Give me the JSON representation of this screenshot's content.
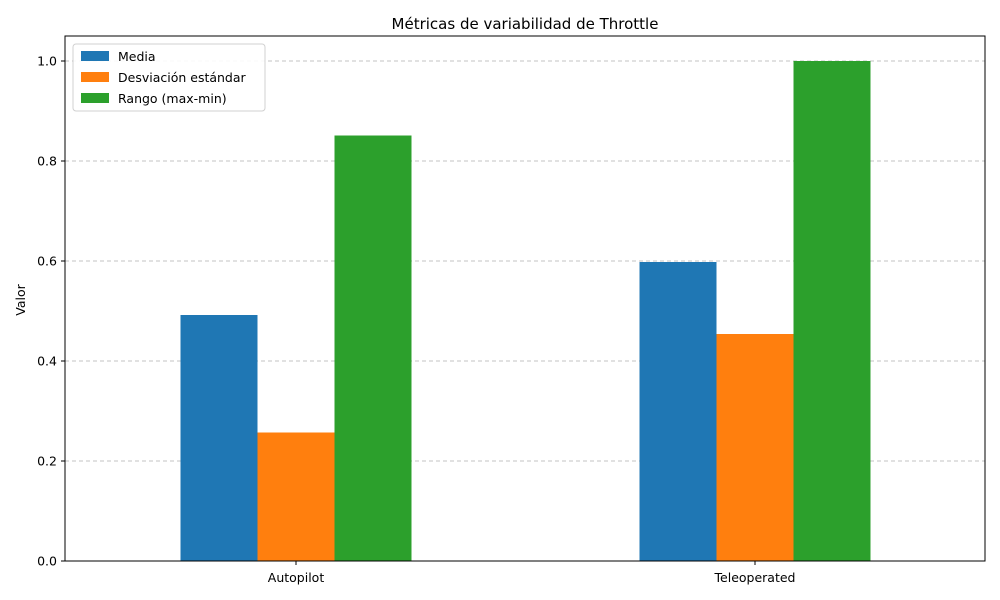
{
  "chart_data": {
    "type": "bar",
    "title": "Métricas de variabilidad de Throttle",
    "xlabel": "",
    "ylabel": "Valor",
    "categories": [
      "Autopilot",
      "Teleoperated"
    ],
    "series": [
      {
        "name": "Media",
        "color": "#1f77b4",
        "values": [
          0.492,
          0.598
        ]
      },
      {
        "name": "Desviación estándar",
        "color": "#ff7f0e",
        "values": [
          0.257,
          0.454
        ]
      },
      {
        "name": "Rango (max-min)",
        "color": "#2ca02c",
        "values": [
          0.851,
          1.0
        ]
      }
    ],
    "ylim": [
      0,
      1.05
    ],
    "yticks": [
      "0.0",
      "0.2",
      "0.4",
      "0.6",
      "0.8",
      "1.0"
    ],
    "ytick_values": [
      0,
      0.2,
      0.4,
      0.6,
      0.8,
      1.0
    ],
    "grid": "horizontal dashed",
    "legend_position": "upper-left"
  }
}
